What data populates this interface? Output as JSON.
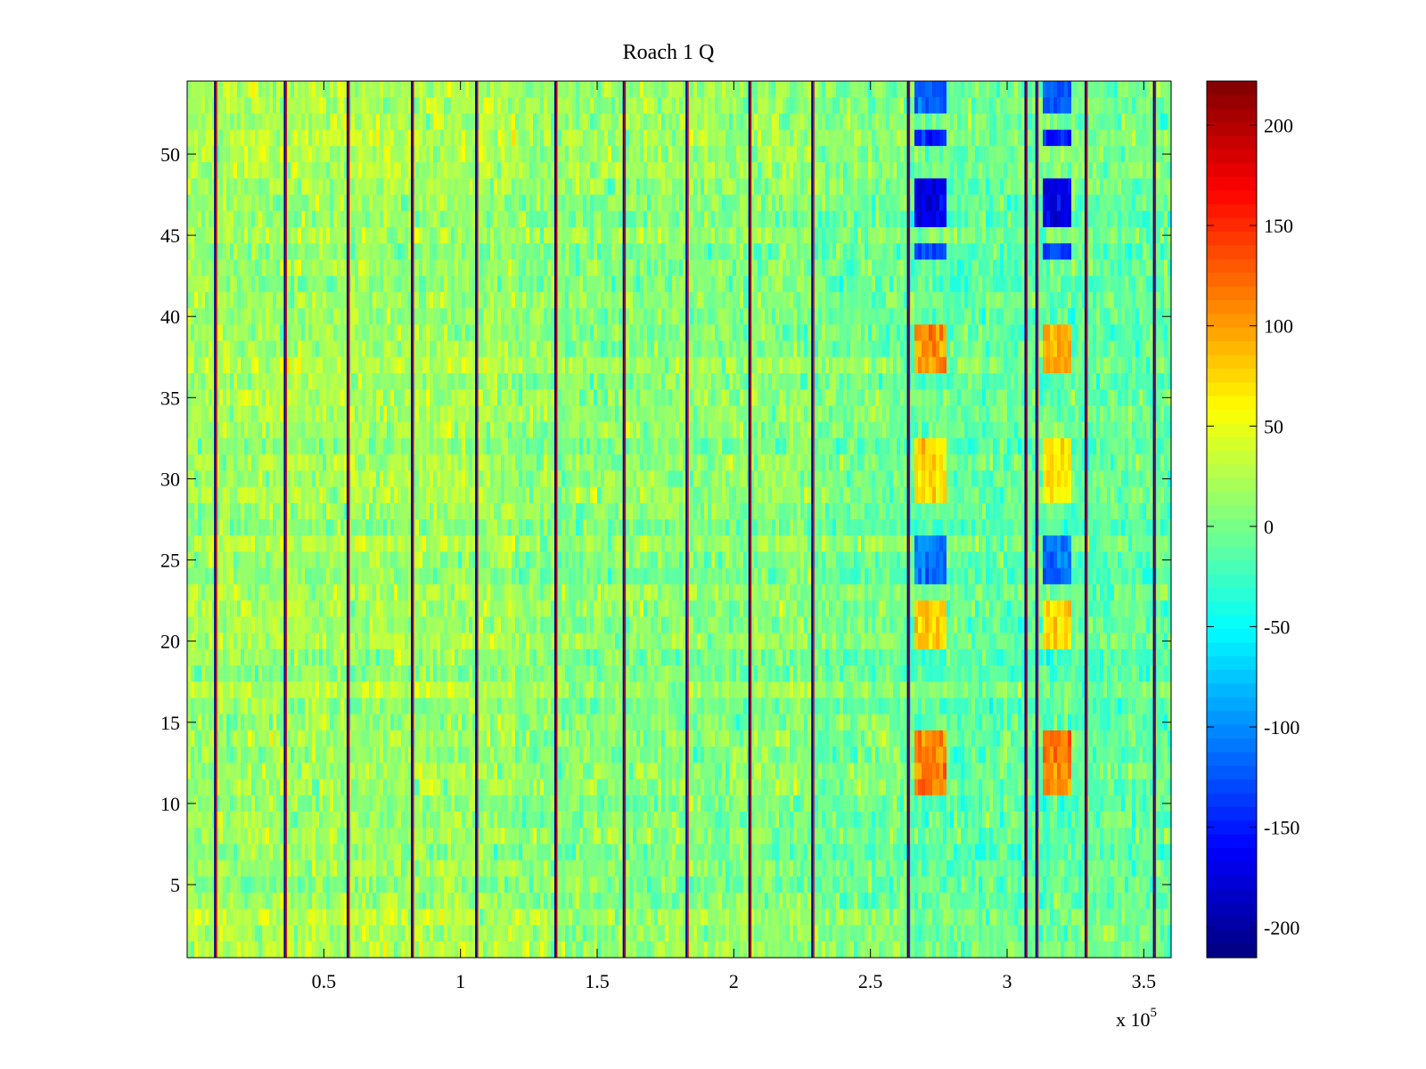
{
  "chart_data": {
    "type": "heatmap",
    "title": "Roach 1 Q",
    "xlabel": "",
    "ylabel": "",
    "x_multiplier_base": "x 10",
    "x_multiplier_exp": "5",
    "xlim": [
      0,
      3.6
    ],
    "ylim": [
      0.5,
      54.5
    ],
    "x_ticks": [
      0.5,
      1,
      1.5,
      2,
      2.5,
      3,
      3.5
    ],
    "x_tick_labels": [
      "0.5",
      "1",
      "1.5",
      "2",
      "2.5",
      "3",
      "3.5"
    ],
    "y_ticks": [
      5,
      10,
      15,
      20,
      25,
      30,
      35,
      40,
      45,
      50
    ],
    "y_tick_labels": [
      "5",
      "10",
      "15",
      "20",
      "25",
      "30",
      "35",
      "40",
      "45",
      "50"
    ],
    "rows": 54,
    "colorbar": {
      "colormap": "jet",
      "clim": [
        -215,
        222
      ],
      "ticks": [
        -200,
        -150,
        -100,
        -50,
        0,
        50,
        100,
        150,
        200
      ],
      "tick_labels": [
        "-200",
        "-150",
        "-100",
        "-50",
        "0",
        "50",
        "100",
        "150",
        "200"
      ]
    },
    "vertical_stripes_x": [
      0.105,
      0.36,
      0.59,
      0.825,
      1.06,
      1.35,
      1.6,
      1.83,
      2.06,
      2.29,
      2.64,
      3.07,
      3.11,
      3.29,
      3.54
    ],
    "base_level_segments": [
      {
        "x_start": 0.0,
        "x_end": 1.2,
        "level": 18
      },
      {
        "x_start": 1.2,
        "x_end": 2.3,
        "level": 8
      },
      {
        "x_start": 2.3,
        "x_end": 2.64,
        "level": 0
      },
      {
        "x_start": 2.64,
        "x_end": 3.6,
        "level": -8
      }
    ],
    "highlight_columns": [
      {
        "x_start": 2.66,
        "x_end": 2.78
      },
      {
        "x_start": 3.13,
        "x_end": 3.24
      }
    ],
    "highlight_row_bands": [
      {
        "y_start": 10.5,
        "y_end": 14.5,
        "level": 110
      },
      {
        "y_start": 19.5,
        "y_end": 22.5,
        "level": 75
      },
      {
        "y_start": 23.5,
        "y_end": 26.5,
        "level": -110
      },
      {
        "y_start": 28.5,
        "y_end": 32.5,
        "level": 70
      },
      {
        "y_start": 36.5,
        "y_end": 39.5,
        "level": 100
      },
      {
        "y_start": 43.5,
        "y_end": 44.5,
        "level": -140
      },
      {
        "y_start": 45.5,
        "y_end": 48.5,
        "level": -170
      },
      {
        "y_start": 50.5,
        "y_end": 51.5,
        "level": -150
      },
      {
        "y_start": 52.5,
        "y_end": 54.5,
        "level": -120
      }
    ]
  }
}
